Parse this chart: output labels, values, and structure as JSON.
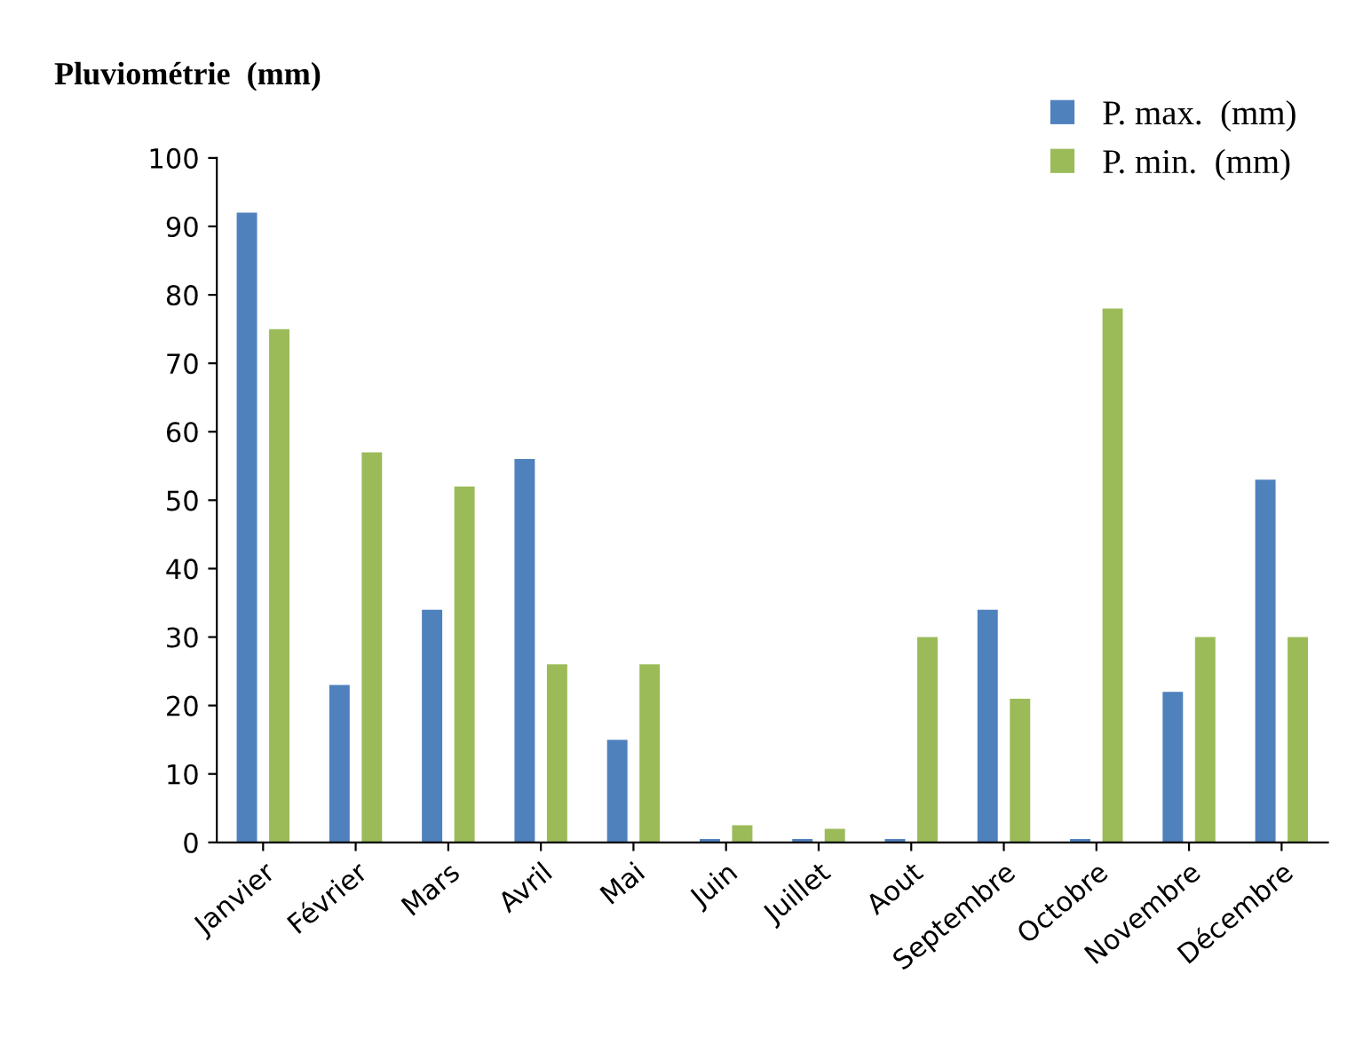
{
  "chart_data": {
    "type": "bar",
    "title": "Pluviométrie  (mm)",
    "categories": [
      "Janvier",
      "Février",
      "Mars",
      "Avril",
      "Mai",
      "Juin",
      "Juillet",
      "Aout",
      "Septembre",
      "Octobre",
      "Novembre",
      "Décembre"
    ],
    "series": [
      {
        "name": "P. max.  (mm)",
        "color": "#4f81bd",
        "values": [
          92,
          23,
          34,
          56,
          15,
          0.5,
          0.5,
          0.5,
          34,
          0.5,
          22,
          53
        ]
      },
      {
        "name": "P. min.  (mm)",
        "color": "#9bbb59",
        "values": [
          75,
          57,
          52,
          26,
          26,
          2.5,
          2,
          30,
          21,
          78,
          30,
          30
        ]
      }
    ],
    "ylim": [
      0,
      100
    ],
    "yticks": [
      0,
      10,
      20,
      30,
      40,
      50,
      60,
      70,
      80,
      90,
      100
    ],
    "grid": false,
    "legend": "top right"
  }
}
